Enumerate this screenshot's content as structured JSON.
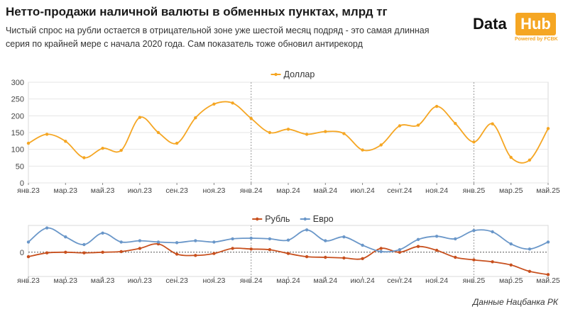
{
  "header": {
    "title": "Нетто-продажи наличной валюты в обменных пунктах, млрд тг",
    "subtitle": "Чистый спрос на рубли остается в отрицательной зоне уже шестой месяц подряд - это самая длинная серия по крайней мере с начала 2020 года. Сам показатель тоже обновил антирекорд"
  },
  "logo": {
    "word1": "Data",
    "word2": "Hub",
    "tagline": "Powered by FCBK"
  },
  "source": "Данные Нацбанка РК",
  "colors": {
    "dollar": "#f5a623",
    "ruble": "#c8501e",
    "euro": "#6a97c9",
    "grid": "#e6e6e6",
    "axis": "#666666"
  },
  "chart_data": [
    {
      "type": "line",
      "ylim": [
        0,
        300
      ],
      "yticks": [
        0,
        50,
        100,
        150,
        200,
        250,
        300
      ],
      "x_labels": [
        "янв.23",
        "мар.23",
        "май.23",
        "июл.23",
        "сен.23",
        "ноя.23",
        "янв.24",
        "мар.24",
        "май.24",
        "июл.24",
        "сент.24",
        "ноя.24",
        "янв.25",
        "мар.25",
        "май.25"
      ],
      "legend_position": "top-center",
      "series": [
        {
          "name": "Доллар",
          "color": "#f5a623",
          "values": [
            118,
            145,
            124,
            75,
            103,
            97,
            195,
            150,
            118,
            194,
            235,
            238,
            192,
            150,
            160,
            145,
            153,
            147,
            98,
            113,
            170,
            172,
            228,
            177,
            122,
            176,
            76,
            68,
            162
          ]
        }
      ]
    },
    {
      "type": "line",
      "yticks": [
        0
      ],
      "ylim": [
        -38,
        42
      ],
      "x_labels": [
        "янв.23",
        "мар.23",
        "май.23",
        "июл.23",
        "сен.23",
        "ноя.23",
        "янв.24",
        "мар.24",
        "май.24",
        "июл.24",
        "сент.24",
        "ноя.24",
        "янв.25",
        "мар.25",
        "май.25"
      ],
      "legend_position": "top-center",
      "series": [
        {
          "name": "Рубль",
          "color": "#c8501e",
          "values": [
            -7,
            -1,
            0,
            -1,
            0,
            1,
            6,
            13,
            -3,
            -5,
            -2,
            6,
            5,
            4,
            -2,
            -7,
            -8,
            -9,
            -10,
            6,
            0,
            9,
            3,
            -8,
            -12,
            -15,
            -20,
            -30,
            -35
          ]
        },
        {
          "name": "Евро",
          "color": "#6a97c9",
          "values": [
            16,
            38,
            24,
            12,
            30,
            16,
            18,
            16,
            15,
            18,
            16,
            21,
            22,
            21,
            19,
            35,
            18,
            24,
            11,
            1,
            4,
            20,
            25,
            21,
            34,
            32,
            13,
            5,
            16
          ]
        }
      ]
    }
  ]
}
